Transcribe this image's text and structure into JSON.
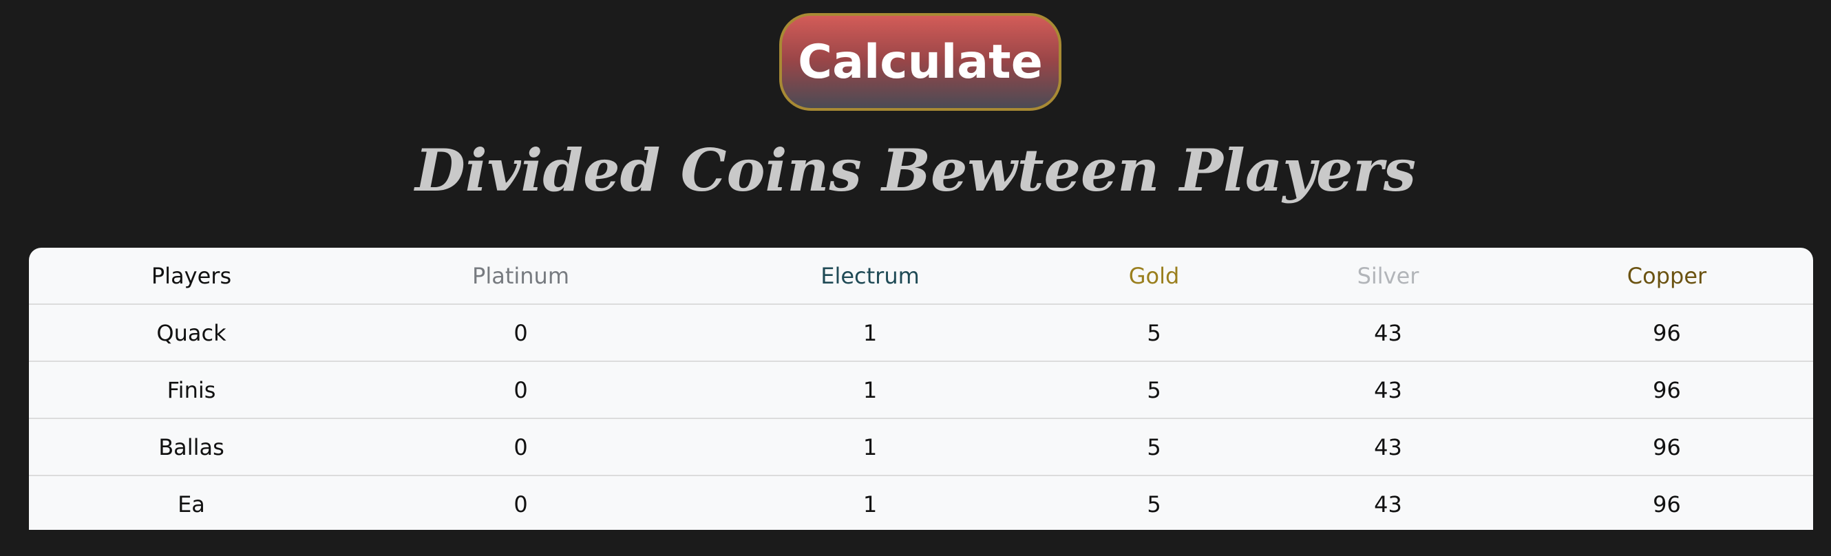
{
  "button": {
    "label": "Calculate"
  },
  "title": "Divided Coins Bewteen Players",
  "table": {
    "headers": [
      {
        "label": "Players",
        "color": "#111111"
      },
      {
        "label": "Platinum",
        "color": "#777b80"
      },
      {
        "label": "Electrum",
        "color": "#1f4a55"
      },
      {
        "label": "Gold",
        "color": "#9a7f1e"
      },
      {
        "label": "Silver",
        "color": "#b2b5b9"
      },
      {
        "label": "Copper",
        "color": "#6b5312"
      }
    ],
    "rows": [
      [
        "Quack",
        "0",
        "1",
        "5",
        "43",
        "96"
      ],
      [
        "Finis",
        "0",
        "1",
        "5",
        "43",
        "96"
      ],
      [
        "Ballas",
        "0",
        "1",
        "5",
        "43",
        "96"
      ],
      [
        "Ea",
        "0",
        "1",
        "5",
        "43",
        "96"
      ]
    ]
  }
}
